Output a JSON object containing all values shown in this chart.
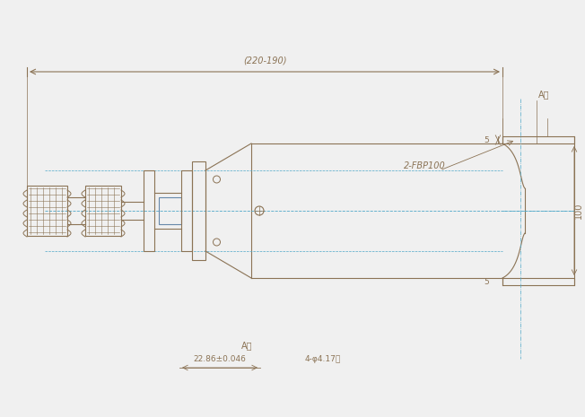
{
  "bg_color": "#f0f0f0",
  "line_color": "#8B7355",
  "dim_color": "#8B7355",
  "center_line_color": "#4fa8c8",
  "title": "",
  "dim_label_overall": "(220-190)",
  "dim_label_A": "A向",
  "dim_label_view": "A向",
  "dim_label_bolt": "4-φ4.17孔",
  "dim_label_dia": "22.86±0.046",
  "dim_label_flange": "2-FBP100",
  "dim_label_5top": "5",
  "dim_label_5bot": "5",
  "dim_label_100": "100",
  "note_color": "#8B4513"
}
